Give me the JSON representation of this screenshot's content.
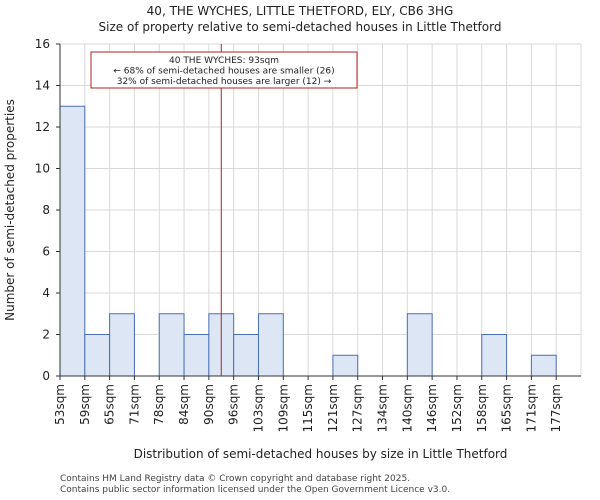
{
  "header": {
    "title_line1": "40, THE WYCHES, LITTLE THETFORD, ELY, CB6 3HG",
    "title_line2": "Size of property relative to semi-detached houses in Little Thetford"
  },
  "footer": {
    "line1": "Contains HM Land Registry data © Crown copyright and database right 2025.",
    "line2": "Contains public sector information licensed under the Open Government Licence v3.0."
  },
  "chart_data": {
    "type": "bar",
    "title": "Size of property relative to semi-detached houses in Little Thetford",
    "xlabel": "Distribution of semi-detached houses by size in Little Thetford",
    "ylabel": "Number of semi-detached properties",
    "categories": [
      "53sqm",
      "59sqm",
      "65sqm",
      "71sqm",
      "78sqm",
      "84sqm",
      "90sqm",
      "96sqm",
      "103sqm",
      "109sqm",
      "115sqm",
      "121sqm",
      "127sqm",
      "134sqm",
      "140sqm",
      "146sqm",
      "152sqm",
      "158sqm",
      "165sqm",
      "171sqm",
      "177sqm"
    ],
    "values": [
      13,
      2,
      3,
      0,
      3,
      2,
      3,
      2,
      3,
      0,
      0,
      1,
      0,
      0,
      3,
      0,
      0,
      2,
      0,
      1,
      0
    ],
    "ylim": [
      0,
      16
    ],
    "yticks": [
      0,
      2,
      4,
      6,
      8,
      10,
      12,
      14,
      16
    ],
    "grid": true,
    "bar_color": "#dce6f5",
    "bar_edge_color": "#4a6fb5",
    "marker": {
      "value_index": 6.5,
      "color": "#b22222",
      "lines": [
        "40 THE WYCHES: 93sqm",
        "← 68% of semi-detached houses are smaller (26)",
        "32% of semi-detached houses are larger (12) →"
      ]
    }
  }
}
